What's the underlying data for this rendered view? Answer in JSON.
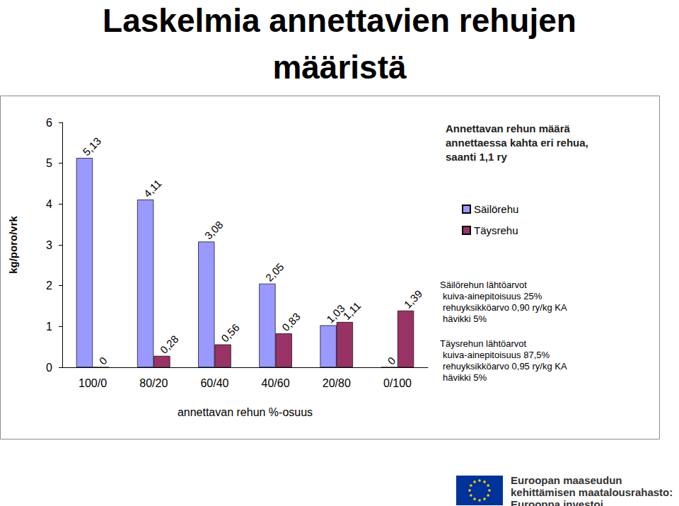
{
  "chart_data": {
    "type": "bar",
    "title": "Laskelmia annettavien rehujen määristä",
    "subtitle": "Annettavan rehun määrä annettaessa kahta eri rehua, saanti 1,1 ry",
    "x_label": "annettavan rehun %-osuus",
    "y_label": "kg/poro/vrk",
    "categories": [
      "100/0",
      "80/20",
      "60/40",
      "40/60",
      "20/80",
      "0/100"
    ],
    "series": [
      {
        "name": "Säilörehu",
        "color": "#9999ff",
        "values": [
          5.13,
          4.11,
          3.08,
          2.05,
          1.03,
          0
        ],
        "value_labels": [
          "5,13",
          "4,11",
          "3,08",
          "2,05",
          "1,03",
          "0"
        ]
      },
      {
        "name": "Täysrehu",
        "color": "#993366",
        "values": [
          0,
          0.28,
          0.56,
          0.83,
          1.11,
          1.39
        ],
        "value_labels": [
          "0",
          "0,28",
          "0,56",
          "0,83",
          "1,11",
          "1,39"
        ]
      }
    ],
    "ylim": [
      0,
      6
    ],
    "yticks": [
      0,
      1,
      2,
      3,
      4,
      5,
      6
    ],
    "grid": false,
    "legend": "right",
    "data_labels": true,
    "annotations": [
      [
        "Säilörehun lähtöarvot",
        "kuiva-ainepitoisuus 25%",
        "rehuyksikköarvo 0,90 ry/kg KA",
        "hävikki 5%"
      ],
      [
        "Täysrehun lähtöarvot",
        "kuiva-ainepitoisuus 87,5%",
        "rehuyksikköarvo 0,95 ry/kg KA",
        "hävikki 5%"
      ]
    ],
    "footer": [
      "Euroopan maaseudun",
      "kehittämisen maatalousrahasto:",
      "Eurooppa investoi maaseutualueisiin"
    ]
  }
}
